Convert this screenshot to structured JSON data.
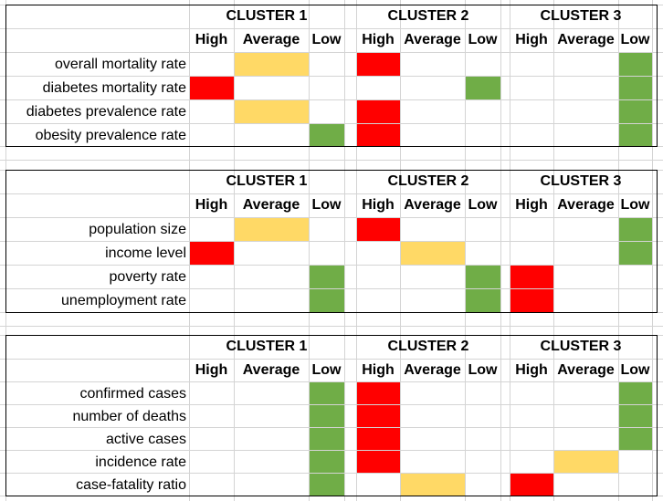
{
  "colors": {
    "high": "#ff0000",
    "average": "#ffd966",
    "low": "#70ad47",
    "gridline": "#d4d4d4",
    "border": "#000000"
  },
  "headers": {
    "clusters": [
      "CLUSTER 1",
      "CLUSTER 2",
      "CLUSTER 3"
    ],
    "levels": [
      "High",
      "Average",
      "Low"
    ]
  },
  "tables": [
    {
      "rows": [
        {
          "label": "overall mortality rate",
          "cells": [
            "",
            "average",
            "",
            "high",
            "",
            "",
            "",
            "",
            "low"
          ]
        },
        {
          "label": "diabetes mortality rate",
          "cells": [
            "high",
            "",
            "",
            "",
            "",
            "low",
            "",
            "",
            "low"
          ]
        },
        {
          "label": "diabetes prevalence rate",
          "cells": [
            "",
            "average",
            "",
            "high",
            "",
            "",
            "",
            "",
            "low"
          ]
        },
        {
          "label": "obesity prevalence rate",
          "cells": [
            "",
            "",
            "low",
            "high",
            "",
            "",
            "",
            "",
            "low"
          ]
        }
      ]
    },
    {
      "rows": [
        {
          "label": "",
          "cells": [
            "",
            "",
            "",
            "",
            "",
            "",
            "",
            "",
            ""
          ]
        },
        {
          "label": "population size",
          "cells": [
            "",
            "average",
            "",
            "high",
            "",
            "",
            "",
            "",
            "low"
          ]
        },
        {
          "label": "income level",
          "cells": [
            "high",
            "",
            "",
            "",
            "average",
            "",
            "",
            "",
            "low"
          ]
        },
        {
          "label": "poverty rate",
          "cells": [
            "",
            "",
            "low",
            "",
            "",
            "low",
            "high",
            "",
            ""
          ]
        },
        {
          "label": "unemployment rate",
          "cells": [
            "",
            "",
            "low",
            "",
            "",
            "low",
            "high",
            "",
            ""
          ]
        }
      ]
    },
    {
      "rows": [
        {
          "label": "confirmed cases",
          "cells": [
            "",
            "",
            "low",
            "high",
            "",
            "",
            "",
            "",
            "low"
          ]
        },
        {
          "label": "number of deaths",
          "cells": [
            "",
            "",
            "low",
            "high",
            "",
            "",
            "",
            "",
            "low"
          ]
        },
        {
          "label": "active cases",
          "cells": [
            "",
            "",
            "low",
            "high",
            "",
            "",
            "",
            "",
            "low"
          ]
        },
        {
          "label": "incidence rate",
          "cells": [
            "",
            "",
            "low",
            "high",
            "",
            "",
            "",
            "average",
            ""
          ]
        },
        {
          "label": "case-fatality ratio",
          "cells": [
            "",
            "",
            "low",
            "",
            "average",
            "",
            "high",
            "",
            ""
          ]
        }
      ]
    }
  ]
}
